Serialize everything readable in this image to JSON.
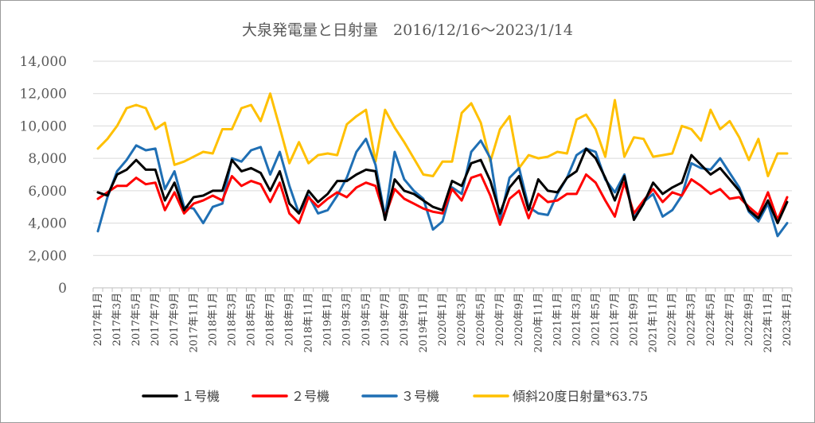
{
  "chart_data": {
    "type": "line",
    "title": "大泉発電量と日射量　2016/12/16〜2023/1/14",
    "xlabel": "",
    "ylabel": "",
    "ylim": [
      0,
      14000
    ],
    "yticks": [
      0,
      2000,
      4000,
      6000,
      8000,
      10000,
      12000,
      14000
    ],
    "ytick_labels": [
      "0",
      "2,000",
      "4,000",
      "6,000",
      "8,000",
      "10,000",
      "12,000",
      "14,000"
    ],
    "grid": true,
    "legend": "bottom",
    "categories": [
      "2017年1月",
      "2017年2月",
      "2017年3月",
      "2017年4月",
      "2017年5月",
      "2017年6月",
      "2017年7月",
      "2017年8月",
      "2017年9月",
      "2017年10月",
      "2017年11月",
      "2017年12月",
      "2018年1月",
      "2018年2月",
      "2018年3月",
      "2018年4月",
      "2018年5月",
      "2018年6月",
      "2018年7月",
      "2018年8月",
      "2018年9月",
      "2018年10月",
      "2018年11月",
      "2018年12月",
      "2019年1月",
      "2019年2月",
      "2019年3月",
      "2019年4月",
      "2019年5月",
      "2019年6月",
      "2019年7月",
      "2019年8月",
      "2019年9月",
      "2019年10月",
      "2019年11月",
      "2019年12月",
      "2020年1月",
      "2020年2月",
      "2020年3月",
      "2020年4月",
      "2020年5月",
      "2020年6月",
      "2020年7月",
      "2020年8月",
      "2020年9月",
      "2020年10月",
      "2020年11月",
      "2020年12月",
      "2021年1月",
      "2021年2月",
      "2021年3月",
      "2021年4月",
      "2021年5月",
      "2021年6月",
      "2021年7月",
      "2021年8月",
      "2021年9月",
      "2021年10月",
      "2021年11月",
      "2021年12月",
      "2022年1月",
      "2022年2月",
      "2022年3月",
      "2022年4月",
      "2022年5月",
      "2022年6月",
      "2022年7月",
      "2022年8月",
      "2022年9月",
      "2022年10月",
      "2022年11月",
      "2022年12月",
      "2023年1月"
    ],
    "tick_labels": [
      "2017年1月",
      "2017年3月",
      "2017年5月",
      "2017年7月",
      "2017年9月",
      "2017年11月",
      "2018年1月",
      "2018年3月",
      "2018年5月",
      "2018年7月",
      "2018年9月",
      "2018年11月",
      "2019年1月",
      "2019年3月",
      "2019年5月",
      "2019年7月",
      "2019年9月",
      "2019年11月",
      "2020年1月",
      "2020年3月",
      "2020年5月",
      "2020年7月",
      "2020年9月",
      "2020年11月",
      "2021年1月",
      "2021年3月",
      "2021年5月",
      "2021年7月",
      "2021年9月",
      "2021年11月",
      "2022年1月",
      "2022年3月",
      "2022年5月",
      "2022年7月",
      "2022年9月",
      "2022年11月",
      "2023年1月"
    ],
    "series": [
      {
        "name": "１号機",
        "color": "#000000",
        "values": [
          5900,
          5700,
          7000,
          7300,
          7900,
          7300,
          7300,
          5400,
          6500,
          4800,
          5600,
          5700,
          6000,
          6000,
          7900,
          7200,
          7400,
          7100,
          6000,
          7200,
          5200,
          4600,
          6000,
          5300,
          5800,
          6600,
          6600,
          7000,
          7300,
          7200,
          4200,
          6700,
          6000,
          5800,
          5400,
          5000,
          4800,
          6600,
          6300,
          7700,
          7900,
          6600,
          4600,
          6200,
          6900,
          4800,
          6700,
          6000,
          5900,
          6800,
          7200,
          8600,
          8000,
          6800,
          5400,
          6900,
          4200,
          5200,
          6500,
          5800,
          6200,
          6500,
          8200,
          7600,
          7000,
          7400,
          6700,
          6000,
          4800,
          4300,
          5400,
          4000,
          5300
        ]
      },
      {
        "name": "２号機",
        "color": "#ff0000",
        "values": [
          5500,
          5900,
          6300,
          6300,
          6800,
          6400,
          6500,
          4800,
          5900,
          4600,
          5200,
          5400,
          5700,
          5400,
          6900,
          6300,
          6600,
          6400,
          5300,
          6500,
          4600,
          4000,
          5600,
          5000,
          5500,
          5900,
          5600,
          6200,
          6500,
          6300,
          4400,
          6100,
          5500,
          5200,
          4900,
          4700,
          4600,
          6100,
          5400,
          6800,
          7000,
          5700,
          3900,
          5500,
          6000,
          4300,
          5800,
          5300,
          5400,
          5800,
          5800,
          7000,
          6500,
          5400,
          4400,
          6500,
          4600,
          5400,
          6100,
          5300,
          5900,
          5700,
          6700,
          6300,
          5800,
          6100,
          5500,
          5600,
          5000,
          4500,
          5900,
          4200,
          5600
        ]
      },
      {
        "name": "３号機",
        "color": "#1f6fb4",
        "values": [
          3500,
          5600,
          7200,
          7900,
          8800,
          8500,
          8600,
          6100,
          7200,
          5000,
          4900,
          4000,
          5000,
          5200,
          8000,
          7800,
          8500,
          8700,
          7000,
          8400,
          6300,
          4600,
          5700,
          4600,
          4800,
          5700,
          6800,
          8400,
          9200,
          7600,
          4400,
          8400,
          6700,
          6000,
          5500,
          3600,
          4100,
          6200,
          5800,
          8400,
          9100,
          8000,
          4200,
          6800,
          7400,
          5000,
          4600,
          4500,
          5800,
          6800,
          8200,
          8600,
          8400,
          6700,
          5900,
          7000,
          4300,
          5300,
          5800,
          4400,
          4800,
          5700,
          7700,
          7400,
          7300,
          8000,
          7100,
          6200,
          4700,
          4100,
          5200,
          3200,
          4000
        ]
      },
      {
        "name": "傾斜20度日射量*63.75",
        "color": "#ffc000",
        "values": [
          8600,
          9200,
          10000,
          11100,
          11300,
          11100,
          9800,
          10200,
          7600,
          7800,
          8100,
          8400,
          8300,
          9800,
          9800,
          11100,
          11300,
          10300,
          12000,
          9900,
          7700,
          9000,
          7700,
          8200,
          8300,
          8200,
          10100,
          10600,
          11000,
          7800,
          11000,
          9900,
          9000,
          8000,
          7000,
          6900,
          7800,
          7800,
          10800,
          11400,
          10200,
          7800,
          9800,
          10600,
          7400,
          8200,
          8000,
          8100,
          8400,
          8300,
          10400,
          10700,
          9800,
          8100,
          11600,
          8100,
          9300,
          9200,
          8100,
          8200,
          8300,
          10000,
          9800,
          9100,
          11000,
          9800,
          10300,
          9300,
          7900,
          9200,
          6900,
          8300,
          8300
        ]
      }
    ]
  }
}
